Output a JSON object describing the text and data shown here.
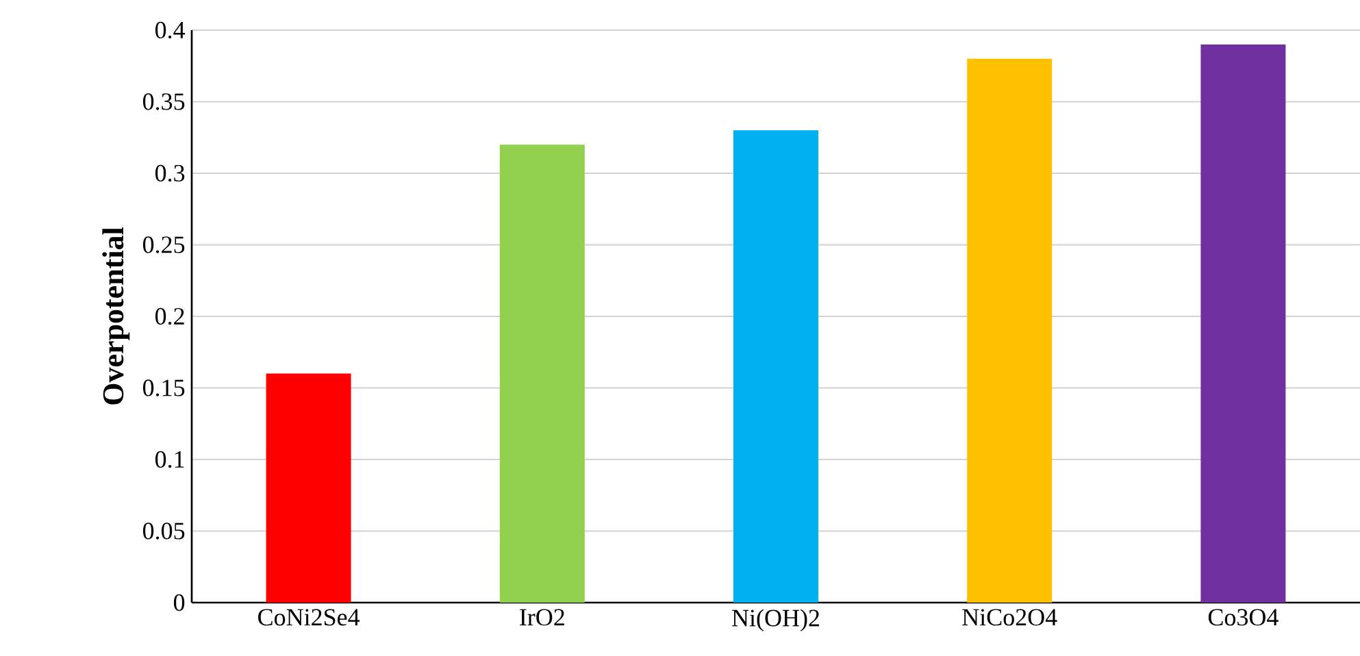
{
  "chart_data": {
    "type": "bar",
    "ylabel": "Overpotential",
    "categories": [
      "CoNi2Se4",
      "IrO2",
      "Ni(OH)2",
      "NiCo2O4",
      "Co3O4"
    ],
    "values": [
      0.16,
      0.32,
      0.33,
      0.38,
      0.39
    ],
    "colors": [
      "#ff0000",
      "#92d050",
      "#00b0f0",
      "#ffc000",
      "#7030a0"
    ],
    "ylim": [
      0,
      0.4
    ],
    "yticks": [
      0,
      0.05,
      0.1,
      0.15,
      0.2,
      0.25,
      0.3,
      0.35,
      0.4
    ],
    "grid": "y"
  }
}
